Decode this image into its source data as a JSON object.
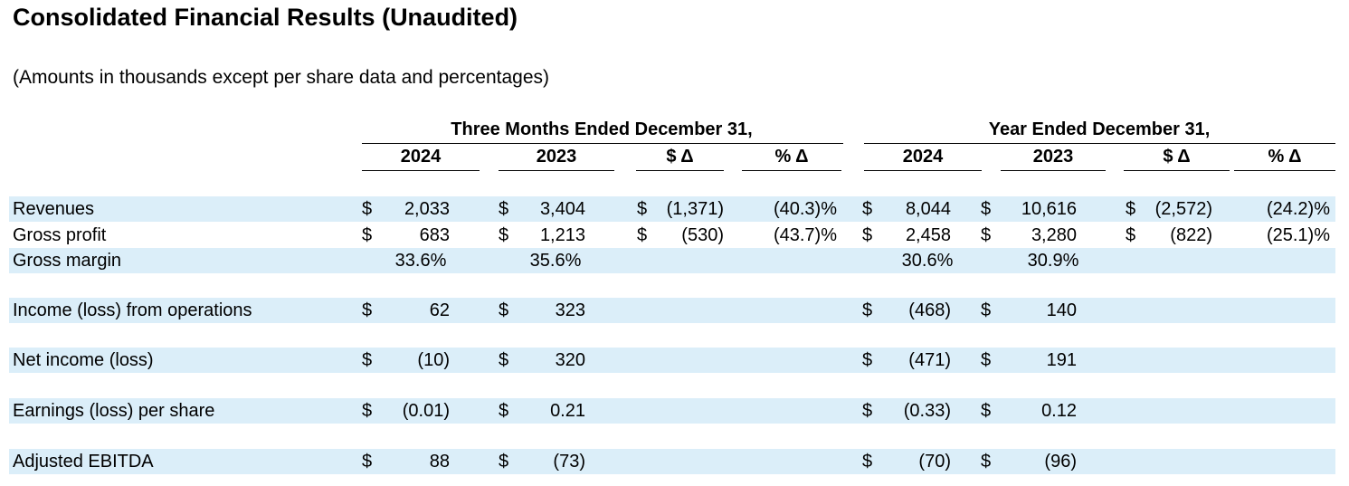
{
  "title": "Consolidated Financial Results (Unaudited)",
  "subtitle": "(Amounts in thousands except per share data and percentages)",
  "header": {
    "three_months": "Three Months Ended December 31,",
    "year_ended": "Year Ended December 31,",
    "columns": [
      "2024",
      "2023",
      "$ Δ",
      "% Δ",
      "2024",
      "2023",
      "$ Δ",
      "% Δ"
    ]
  },
  "rows": [
    {
      "label": "Revenues",
      "cells": [
        {
          "cur": "$",
          "val": "2,033"
        },
        {
          "cur": "$",
          "val": "3,404"
        },
        {
          "cur": "$",
          "val": "(1,371)"
        },
        {
          "val": "(40.3)%"
        },
        {
          "cur": "$",
          "val": "8,044"
        },
        {
          "cur": "$",
          "val": "10,616"
        },
        {
          "cur": "$",
          "val": "(2,572)"
        },
        {
          "val": "(24.2)%"
        }
      ]
    },
    {
      "label": "Gross profit",
      "cells": [
        {
          "cur": "$",
          "val": "683"
        },
        {
          "cur": "$",
          "val": "1,213"
        },
        {
          "cur": "$",
          "val": "(530)"
        },
        {
          "val": "(43.7)%"
        },
        {
          "cur": "$",
          "val": "2,458"
        },
        {
          "cur": "$",
          "val": "3,280"
        },
        {
          "cur": "$",
          "val": "(822)"
        },
        {
          "val": "(25.1)%"
        }
      ]
    },
    {
      "label": "Gross margin",
      "cells": [
        {
          "val": "33.6%"
        },
        {
          "val": "35.6%"
        },
        {},
        {},
        {
          "val": "30.6%"
        },
        {
          "val": "30.9%"
        },
        {},
        {}
      ]
    },
    {
      "label": "Income (loss) from operations",
      "cells": [
        {
          "cur": "$",
          "val": "62"
        },
        {
          "cur": "$",
          "val": "323"
        },
        {},
        {},
        {
          "cur": "$",
          "val": "(468)"
        },
        {
          "cur": "$",
          "val": "140"
        },
        {},
        {}
      ]
    },
    {
      "label": "Net income (loss)",
      "cells": [
        {
          "cur": "$",
          "val": "(10)"
        },
        {
          "cur": "$",
          "val": "320"
        },
        {},
        {},
        {
          "cur": "$",
          "val": "(471)"
        },
        {
          "cur": "$",
          "val": "191"
        },
        {},
        {}
      ]
    },
    {
      "label": "Earnings (loss) per share",
      "cells": [
        {
          "cur": "$",
          "val": "(0.01)"
        },
        {
          "cur": "$",
          "val": "0.21"
        },
        {},
        {},
        {
          "cur": "$",
          "val": "(0.33)"
        },
        {
          "cur": "$",
          "val": "0.12"
        },
        {},
        {}
      ]
    },
    {
      "label": "Adjusted EBITDA",
      "cells": [
        {
          "cur": "$",
          "val": "88"
        },
        {
          "cur": "$",
          "val": "(73)"
        },
        {},
        {},
        {
          "cur": "$",
          "val": "(70)"
        },
        {
          "cur": "$",
          "val": "(96)"
        },
        {},
        {}
      ]
    }
  ]
}
